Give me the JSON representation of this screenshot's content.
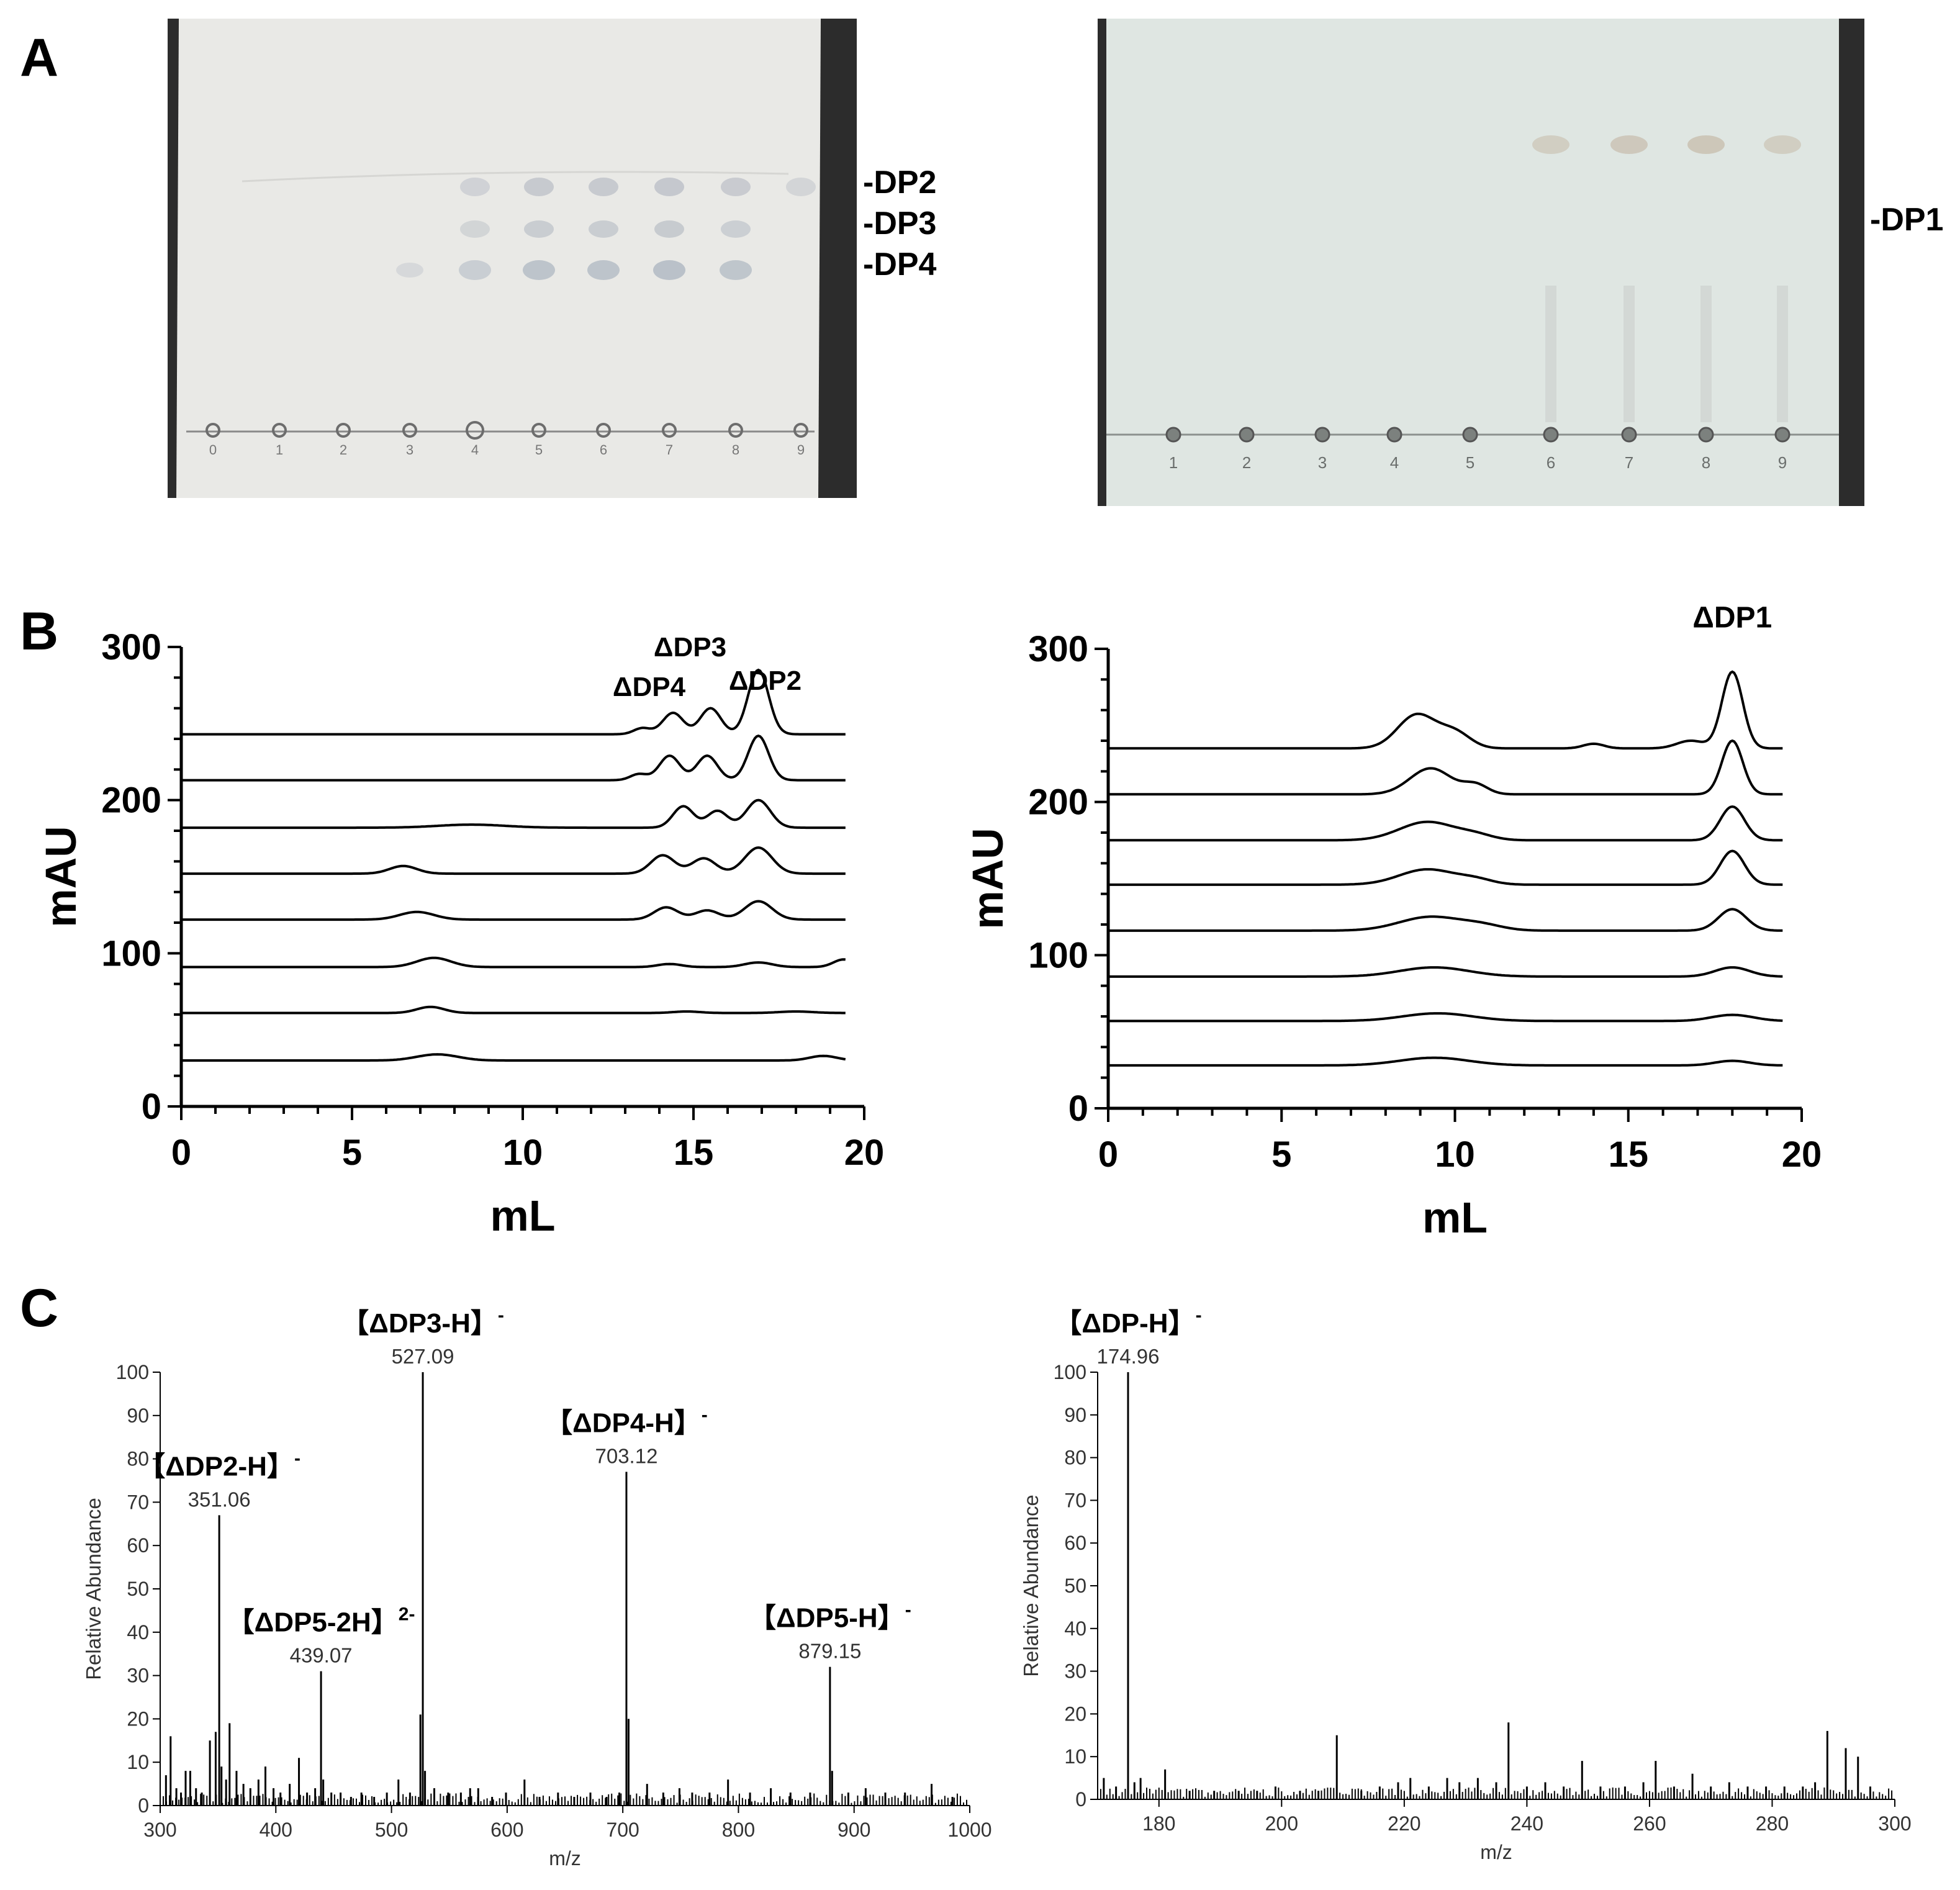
{
  "panels": {
    "a": "A",
    "b": "B",
    "c": "C"
  },
  "tlc_left": {
    "lane_numbers": [
      "0",
      "1",
      "2",
      "3",
      "4",
      "5",
      "6",
      "7",
      "8",
      "9"
    ],
    "labels": [
      "-DP2",
      "-DP3",
      "-DP4"
    ],
    "plate_color": "#e9e9e6"
  },
  "tlc_right": {
    "lane_numbers": [
      "1",
      "2",
      "3",
      "4",
      "5",
      "6",
      "7",
      "8",
      "9"
    ],
    "labels": [
      "-DP1"
    ],
    "plate_color": "#dfe6e2"
  },
  "chart_data": [
    {
      "type": "line",
      "xlabel": "mL",
      "ylabel": "mAU",
      "xlim": [
        0,
        20
      ],
      "ylim": [
        0,
        300
      ],
      "xticks": [
        "0",
        "5",
        "10",
        "15",
        "20"
      ],
      "yticks": [
        "0",
        "100",
        "200",
        "300"
      ],
      "annotations": [
        "ΔDP4",
        "ΔDP3",
        "ΔDP2"
      ],
      "series": [
        {
          "baseline": 243,
          "peaks": [
            {
              "x": 13.5,
              "h": 4,
              "w": 0.25
            },
            {
              "x": 14.4,
              "h": 14,
              "w": 0.3
            },
            {
              "x": 15.5,
              "h": 17,
              "w": 0.3
            },
            {
              "x": 16.9,
              "h": 42,
              "w": 0.3
            }
          ]
        },
        {
          "baseline": 213,
          "peaks": [
            {
              "x": 13.4,
              "h": 4,
              "w": 0.25
            },
            {
              "x": 14.3,
              "h": 16,
              "w": 0.3
            },
            {
              "x": 15.4,
              "h": 16,
              "w": 0.3
            },
            {
              "x": 16.9,
              "h": 29,
              "w": 0.3
            }
          ]
        },
        {
          "baseline": 182,
          "peaks": [
            {
              "x": 8.5,
              "h": 2,
              "w": 1.0
            },
            {
              "x": 14.7,
              "h": 14,
              "w": 0.3
            },
            {
              "x": 15.7,
              "h": 11,
              "w": 0.3
            },
            {
              "x": 16.9,
              "h": 18,
              "w": 0.35
            }
          ]
        },
        {
          "baseline": 152,
          "peaks": [
            {
              "x": 6.5,
              "h": 5,
              "w": 0.4
            },
            {
              "x": 14.1,
              "h": 12,
              "w": 0.35
            },
            {
              "x": 15.3,
              "h": 10,
              "w": 0.35
            },
            {
              "x": 16.9,
              "h": 17,
              "w": 0.4
            }
          ]
        },
        {
          "baseline": 122,
          "peaks": [
            {
              "x": 6.9,
              "h": 5,
              "w": 0.5
            },
            {
              "x": 14.2,
              "h": 8,
              "w": 0.35
            },
            {
              "x": 15.4,
              "h": 6,
              "w": 0.35
            },
            {
              "x": 16.9,
              "h": 12,
              "w": 0.4
            }
          ]
        },
        {
          "baseline": 91,
          "peaks": [
            {
              "x": 7.4,
              "h": 6,
              "w": 0.5
            },
            {
              "x": 14.3,
              "h": 2,
              "w": 0.35
            },
            {
              "x": 16.9,
              "h": 3,
              "w": 0.4
            },
            {
              "x": 19.4,
              "h": 5,
              "w": 0.3
            }
          ]
        },
        {
          "baseline": 61,
          "peaks": [
            {
              "x": 7.3,
              "h": 4,
              "w": 0.4
            },
            {
              "x": 14.8,
              "h": 1,
              "w": 0.4
            },
            {
              "x": 18.0,
              "h": 1,
              "w": 0.5
            }
          ]
        },
        {
          "baseline": 30,
          "peaks": [
            {
              "x": 7.5,
              "h": 4,
              "w": 0.6
            },
            {
              "x": 18.8,
              "h": 3,
              "w": 0.4
            }
          ]
        }
      ]
    },
    {
      "type": "line",
      "xlabel": "mL",
      "ylabel": "mAU",
      "xlim": [
        0,
        20
      ],
      "ylim": [
        0,
        300
      ],
      "xticks": [
        "0",
        "5",
        "10",
        "15",
        "20"
      ],
      "yticks": [
        "0",
        "100",
        "200",
        "300"
      ],
      "annotations": [
        "ΔDP1"
      ],
      "series": [
        {
          "baseline": 235,
          "peaks": [
            {
              "x": 8.9,
              "h": 22,
              "w": 0.55
            },
            {
              "x": 10.0,
              "h": 10,
              "w": 0.45
            },
            {
              "x": 14.0,
              "h": 3,
              "w": 0.3
            },
            {
              "x": 16.8,
              "h": 5,
              "w": 0.4
            },
            {
              "x": 18.0,
              "h": 50,
              "w": 0.3
            }
          ]
        },
        {
          "baseline": 205,
          "peaks": [
            {
              "x": 9.3,
              "h": 17,
              "w": 0.6
            },
            {
              "x": 10.6,
              "h": 6,
              "w": 0.35
            },
            {
              "x": 18.0,
              "h": 35,
              "w": 0.3
            }
          ]
        },
        {
          "baseline": 175,
          "peaks": [
            {
              "x": 9.2,
              "h": 12,
              "w": 0.8
            },
            {
              "x": 10.6,
              "h": 3,
              "w": 0.5
            },
            {
              "x": 18.0,
              "h": 22,
              "w": 0.35
            }
          ]
        },
        {
          "baseline": 146,
          "peaks": [
            {
              "x": 9.2,
              "h": 10,
              "w": 0.8
            },
            {
              "x": 10.6,
              "h": 3,
              "w": 0.5
            },
            {
              "x": 18.0,
              "h": 22,
              "w": 0.35
            }
          ]
        },
        {
          "baseline": 116,
          "peaks": [
            {
              "x": 9.3,
              "h": 9,
              "w": 0.9
            },
            {
              "x": 10.8,
              "h": 3,
              "w": 0.6
            },
            {
              "x": 18.0,
              "h": 14,
              "w": 0.4
            }
          ]
        },
        {
          "baseline": 86,
          "peaks": [
            {
              "x": 9.4,
              "h": 6,
              "w": 1.0
            },
            {
              "x": 18.0,
              "h": 6,
              "w": 0.5
            }
          ]
        },
        {
          "baseline": 57,
          "peaks": [
            {
              "x": 9.5,
              "h": 5,
              "w": 1.0
            },
            {
              "x": 18.0,
              "h": 4,
              "w": 0.6
            }
          ]
        },
        {
          "baseline": 28,
          "peaks": [
            {
              "x": 9.4,
              "h": 5,
              "w": 1.0
            },
            {
              "x": 18.0,
              "h": 3,
              "w": 0.5
            }
          ]
        }
      ]
    },
    {
      "type": "bar",
      "xlabel": "m/z",
      "ylabel": "Relative Abundance",
      "xlim": [
        300,
        1000
      ],
      "ylim": [
        0,
        100
      ],
      "xticks": [
        "300",
        "400",
        "500",
        "600",
        "700",
        "800",
        "900",
        "1000"
      ],
      "yticks": [
        "0",
        "10",
        "20",
        "30",
        "40",
        "50",
        "60",
        "70",
        "80",
        "90",
        "100"
      ],
      "peaks": [
        {
          "mz": 351.06,
          "intensity": 67,
          "value_label": "351.06",
          "ion_label": "【ΔDP2-H】",
          "charge": "-"
        },
        {
          "mz": 439.07,
          "intensity": 31,
          "value_label": "439.07",
          "ion_label": "【ΔDP5-2H】",
          "charge": "2-"
        },
        {
          "mz": 527.09,
          "intensity": 100,
          "value_label": "527.09",
          "ion_label": "【ΔDP3-H】",
          "charge": "-"
        },
        {
          "mz": 703.12,
          "intensity": 77,
          "value_label": "703.12",
          "ion_label": "【ΔDP4-H】",
          "charge": "-"
        },
        {
          "mz": 879.15,
          "intensity": 32,
          "value_label": "879.15",
          "ion_label": "【ΔDP5-H】",
          "charge": "-"
        }
      ],
      "minor_peaks": [
        {
          "mz": 305,
          "intensity": 7
        },
        {
          "mz": 309,
          "intensity": 16
        },
        {
          "mz": 314,
          "intensity": 4
        },
        {
          "mz": 318,
          "intensity": 3
        },
        {
          "mz": 322,
          "intensity": 8
        },
        {
          "mz": 326,
          "intensity": 8
        },
        {
          "mz": 331,
          "intensity": 4
        },
        {
          "mz": 336,
          "intensity": 3
        },
        {
          "mz": 343,
          "intensity": 15
        },
        {
          "mz": 348,
          "intensity": 17
        },
        {
          "mz": 353,
          "intensity": 9
        },
        {
          "mz": 357,
          "intensity": 6
        },
        {
          "mz": 360,
          "intensity": 19
        },
        {
          "mz": 366,
          "intensity": 8
        },
        {
          "mz": 372,
          "intensity": 5
        },
        {
          "mz": 378,
          "intensity": 4
        },
        {
          "mz": 385,
          "intensity": 6
        },
        {
          "mz": 391,
          "intensity": 9
        },
        {
          "mz": 398,
          "intensity": 4
        },
        {
          "mz": 404,
          "intensity": 3
        },
        {
          "mz": 412,
          "intensity": 5
        },
        {
          "mz": 420,
          "intensity": 11
        },
        {
          "mz": 427,
          "intensity": 3
        },
        {
          "mz": 434,
          "intensity": 4
        },
        {
          "mz": 441,
          "intensity": 6
        },
        {
          "mz": 448,
          "intensity": 3
        },
        {
          "mz": 456,
          "intensity": 3
        },
        {
          "mz": 465,
          "intensity": 2
        },
        {
          "mz": 474,
          "intensity": 3
        },
        {
          "mz": 485,
          "intensity": 2
        },
        {
          "mz": 496,
          "intensity": 3
        },
        {
          "mz": 506,
          "intensity": 6
        },
        {
          "mz": 516,
          "intensity": 3
        },
        {
          "mz": 525,
          "intensity": 21
        },
        {
          "mz": 529,
          "intensity": 8
        },
        {
          "mz": 537,
          "intensity": 4
        },
        {
          "mz": 549,
          "intensity": 3
        },
        {
          "mz": 560,
          "intensity": 3
        },
        {
          "mz": 568,
          "intensity": 4
        },
        {
          "mz": 575,
          "intensity": 4
        },
        {
          "mz": 587,
          "intensity": 2
        },
        {
          "mz": 599,
          "intensity": 3
        },
        {
          "mz": 615,
          "intensity": 6
        },
        {
          "mz": 628,
          "intensity": 2
        },
        {
          "mz": 644,
          "intensity": 3
        },
        {
          "mz": 658,
          "intensity": 2
        },
        {
          "mz": 672,
          "intensity": 3
        },
        {
          "mz": 686,
          "intensity": 2
        },
        {
          "mz": 697,
          "intensity": 3
        },
        {
          "mz": 705,
          "intensity": 20
        },
        {
          "mz": 721,
          "intensity": 5
        },
        {
          "mz": 735,
          "intensity": 3
        },
        {
          "mz": 749,
          "intensity": 4
        },
        {
          "mz": 760,
          "intensity": 3
        },
        {
          "mz": 775,
          "intensity": 3
        },
        {
          "mz": 791,
          "intensity": 6
        },
        {
          "mz": 810,
          "intensity": 3
        },
        {
          "mz": 828,
          "intensity": 4
        },
        {
          "mz": 845,
          "intensity": 3
        },
        {
          "mz": 862,
          "intensity": 3
        },
        {
          "mz": 881,
          "intensity": 8
        },
        {
          "mz": 895,
          "intensity": 3
        },
        {
          "mz": 910,
          "intensity": 4
        },
        {
          "mz": 927,
          "intensity": 3
        },
        {
          "mz": 944,
          "intensity": 3
        },
        {
          "mz": 967,
          "intensity": 5
        },
        {
          "mz": 985,
          "intensity": 2
        }
      ]
    },
    {
      "type": "bar",
      "xlabel": "m/z",
      "ylabel": "Relative Abundance",
      "xlim": [
        170,
        300
      ],
      "ylim": [
        0,
        100
      ],
      "xticks": [
        "180",
        "200",
        "220",
        "240",
        "260",
        "280",
        "300"
      ],
      "yticks": [
        "0",
        "10",
        "20",
        "30",
        "40",
        "50",
        "60",
        "70",
        "80",
        "90",
        "100"
      ],
      "peaks": [
        {
          "mz": 174.96,
          "intensity": 100,
          "value_label": "174.96",
          "ion_label": "【ΔDP-H】",
          "charge": "-"
        }
      ],
      "minor_peaks": [
        {
          "mz": 171,
          "intensity": 5
        },
        {
          "mz": 173,
          "intensity": 3
        },
        {
          "mz": 176,
          "intensity": 4
        },
        {
          "mz": 177,
          "intensity": 5
        },
        {
          "mz": 181,
          "intensity": 7
        },
        {
          "mz": 185,
          "intensity": 2
        },
        {
          "mz": 189,
          "intensity": 2
        },
        {
          "mz": 193,
          "intensity": 2
        },
        {
          "mz": 196,
          "intensity": 2
        },
        {
          "mz": 199,
          "intensity": 3
        },
        {
          "mz": 203,
          "intensity": 2
        },
        {
          "mz": 206,
          "intensity": 2
        },
        {
          "mz": 209,
          "intensity": 15
        },
        {
          "mz": 213,
          "intensity": 2
        },
        {
          "mz": 216,
          "intensity": 3
        },
        {
          "mz": 219,
          "intensity": 4
        },
        {
          "mz": 221,
          "intensity": 5
        },
        {
          "mz": 224,
          "intensity": 3
        },
        {
          "mz": 227,
          "intensity": 5
        },
        {
          "mz": 229,
          "intensity": 4
        },
        {
          "mz": 232,
          "intensity": 5
        },
        {
          "mz": 235,
          "intensity": 4
        },
        {
          "mz": 237,
          "intensity": 18
        },
        {
          "mz": 240,
          "intensity": 3
        },
        {
          "mz": 243,
          "intensity": 4
        },
        {
          "mz": 246,
          "intensity": 3
        },
        {
          "mz": 249,
          "intensity": 9
        },
        {
          "mz": 252,
          "intensity": 3
        },
        {
          "mz": 256,
          "intensity": 3
        },
        {
          "mz": 259,
          "intensity": 4
        },
        {
          "mz": 261,
          "intensity": 9
        },
        {
          "mz": 264,
          "intensity": 3
        },
        {
          "mz": 267,
          "intensity": 6
        },
        {
          "mz": 270,
          "intensity": 3
        },
        {
          "mz": 273,
          "intensity": 4
        },
        {
          "mz": 276,
          "intensity": 3
        },
        {
          "mz": 279,
          "intensity": 3
        },
        {
          "mz": 282,
          "intensity": 3
        },
        {
          "mz": 285,
          "intensity": 3
        },
        {
          "mz": 287,
          "intensity": 4
        },
        {
          "mz": 289,
          "intensity": 16
        },
        {
          "mz": 292,
          "intensity": 12
        },
        {
          "mz": 294,
          "intensity": 10
        },
        {
          "mz": 296,
          "intensity": 3
        }
      ]
    }
  ]
}
